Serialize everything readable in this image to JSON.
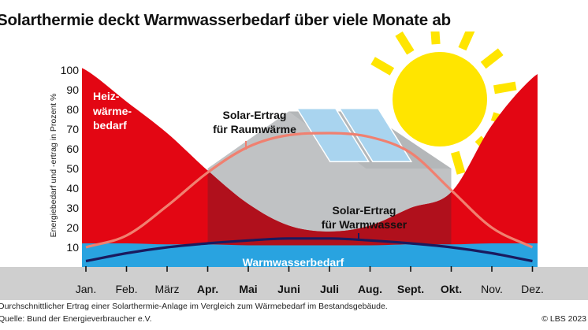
{
  "title": "Solarthermie deckt Warmwasserbedarf über viele Monate ab",
  "footer": {
    "note": "Durchschnittlicher Ertrag einer  Solarthermie-Anlage im Vergleich zum Wärmebedarf im Bestandsgebäude.",
    "source": "Quelle: Bund der Energieverbraucher e.V.",
    "copyright": "© LBS 2023"
  },
  "chart_data": {
    "type": "area",
    "title": "Solarthermie deckt Warmwasserbedarf über viele Monate ab",
    "ylabel": "Energiebedarf und -ertrag in Prozent %",
    "xlabel": "",
    "ylim": [
      0,
      100
    ],
    "yticks": [
      10,
      20,
      30,
      40,
      50,
      60,
      70,
      80,
      90,
      100
    ],
    "categories": [
      "Jan.",
      "Feb.",
      "März",
      "Apr.",
      "Mai",
      "Juni",
      "Juli",
      "Aug.",
      "Sept.",
      "Okt.",
      "Nov.",
      "Dez."
    ],
    "bold_categories": [
      "Apr.",
      "Mai",
      "Juni",
      "Juli",
      "Aug.",
      "Sept.",
      "Okt."
    ],
    "grid": false,
    "series": [
      {
        "name": "Heiz-wärme-bedarf",
        "color": "#e30613",
        "values": [
          100,
          84,
          68,
          49,
          32,
          21,
          18,
          21,
          30,
          38,
          72,
          96
        ]
      },
      {
        "name": "Solar-Ertrag für Raumwärme",
        "color": "#f08070",
        "values": [
          10,
          16,
          31,
          48,
          61,
          67,
          68,
          66,
          58,
          39,
          20,
          10
        ]
      },
      {
        "name": "Solar-Ertrag für Warmwasser",
        "color": "#1a1a5e",
        "values": [
          3,
          7,
          10,
          12,
          13.5,
          14.5,
          14.5,
          13.5,
          12,
          10,
          7,
          3
        ]
      },
      {
        "name": "Warmwasserbedarf",
        "color": "#29a3e0",
        "values": [
          12,
          12,
          11.5,
          11.5,
          11,
          11,
          11,
          11,
          11.5,
          11.5,
          12,
          12
        ]
      }
    ],
    "annotations": [
      {
        "text": "Heiz-wärme-bedarf",
        "lines": [
          "Heiz-",
          "wärme-",
          "bedarf"
        ]
      },
      {
        "text": "Solar-Ertrag für Raumwärme",
        "lines": [
          "Solar-Ertrag",
          "für Raumwärme"
        ]
      },
      {
        "text": "Solar-Ertrag für Warmwasser",
        "lines": [
          "Solar-Ertrag",
          "für Warmwasser"
        ]
      },
      {
        "text": "Warmwasserbedarf",
        "lines": [
          "Warmwasserbedarf"
        ]
      }
    ],
    "colors": {
      "heat": "#e30613",
      "heat_dark": "#b0101c",
      "raum": "#f08070",
      "wasser_line": "#1a1a5e",
      "wasser_fill": "#29a3e0",
      "house": "#c0c2c4",
      "panel": "#a9d4ef",
      "sun": "#ffe500",
      "ground": "#cfcfcf",
      "annotation_white": "#ffffff",
      "annotation_dark": "#111111",
      "annotation_blue_bg": "#ffffff"
    },
    "decorations": [
      "house-illustration",
      "solar-panel-illustration",
      "sun-illustration"
    ]
  }
}
